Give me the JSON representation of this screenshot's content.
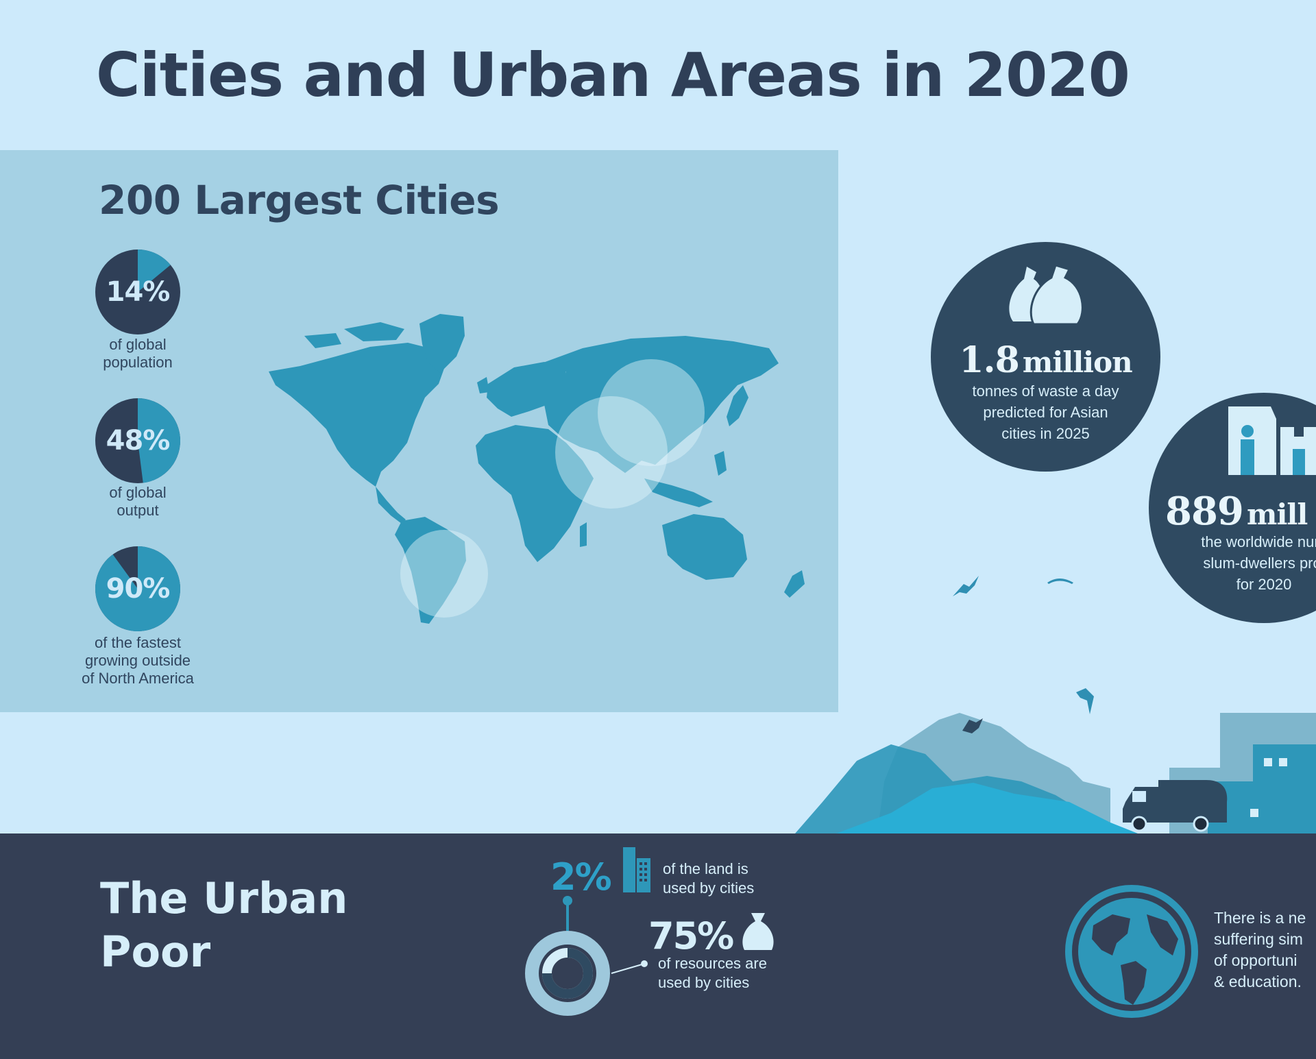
{
  "title": "Cities and Urban Areas in 2020",
  "largest_cities": {
    "heading": "200 Largest Cities",
    "stats": [
      {
        "value": "14%",
        "fraction": 0.14,
        "caption_lines": [
          "of global",
          "population"
        ]
      },
      {
        "value": "48%",
        "fraction": 0.48,
        "caption_lines": [
          "of global",
          "output"
        ]
      },
      {
        "value": "90%",
        "fraction": 0.9,
        "caption_lines": [
          "of the fastest",
          "growing outside",
          "of North America"
        ]
      }
    ]
  },
  "waste": {
    "number": "1.8",
    "unit": "million",
    "caption_lines": [
      "tonnes of waste a day",
      "predicted for Asian",
      "cities in 2025"
    ],
    "icon": "garbage-bags-icon"
  },
  "slums": {
    "number": "889",
    "unit": "mill",
    "caption_lines": [
      "the worldwide num",
      "slum-dwellers proj",
      "for 2020"
    ],
    "icon": "slum-dweller-icon"
  },
  "urban_poor": {
    "heading_lines": [
      "The Urban",
      "Poor"
    ],
    "land": {
      "value": "2%",
      "caption_lines": [
        "of the land is",
        "used by cities"
      ],
      "icon": "buildings-icon"
    },
    "resources": {
      "value": "75%",
      "fraction": 0.75,
      "caption_lines": [
        "of resources are",
        "used by cities"
      ],
      "icon": "money-bag-icon"
    },
    "globe_text_lines": [
      "There is a ne",
      "suffering sim",
      "of opportuni",
      "& education."
    ],
    "globe_icon": "globe-icon"
  },
  "colors": {
    "background": "#cdeafb",
    "panel": "#a5d1e4",
    "navy": "#2f4a61",
    "dark_footer": "#343f55",
    "accent_blue": "#2e97b9",
    "title": "#2f3f57"
  }
}
